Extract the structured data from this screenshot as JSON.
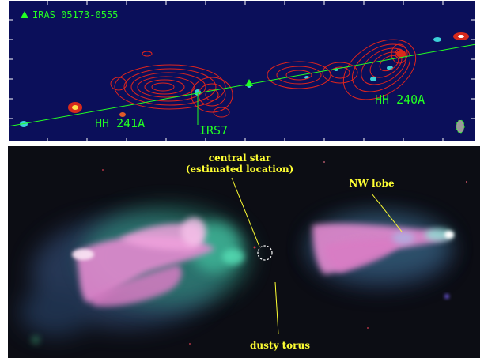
{
  "top_panel": {
    "object_label": "IRAS 05173-0555",
    "labels": {
      "hh241a": "HH 241A",
      "irs7": "IRS7",
      "hh240a": "HH 240A"
    },
    "colors": {
      "background": "#0b0f5a",
      "contour": "#e0251d",
      "annotation": "#22ff22",
      "frame": "#ffffff"
    }
  },
  "bottom_panel": {
    "labels": {
      "central_star_line1": "central star",
      "central_star_line2": "(estimated location)",
      "nw_lobe": "NW lobe",
      "dusty_torus": "dusty torus"
    },
    "colors": {
      "background": "#0c0d14",
      "label": "#ffff33",
      "pink_lobe": "#e48ad0",
      "teal_glow": "#56c7a4"
    }
  }
}
